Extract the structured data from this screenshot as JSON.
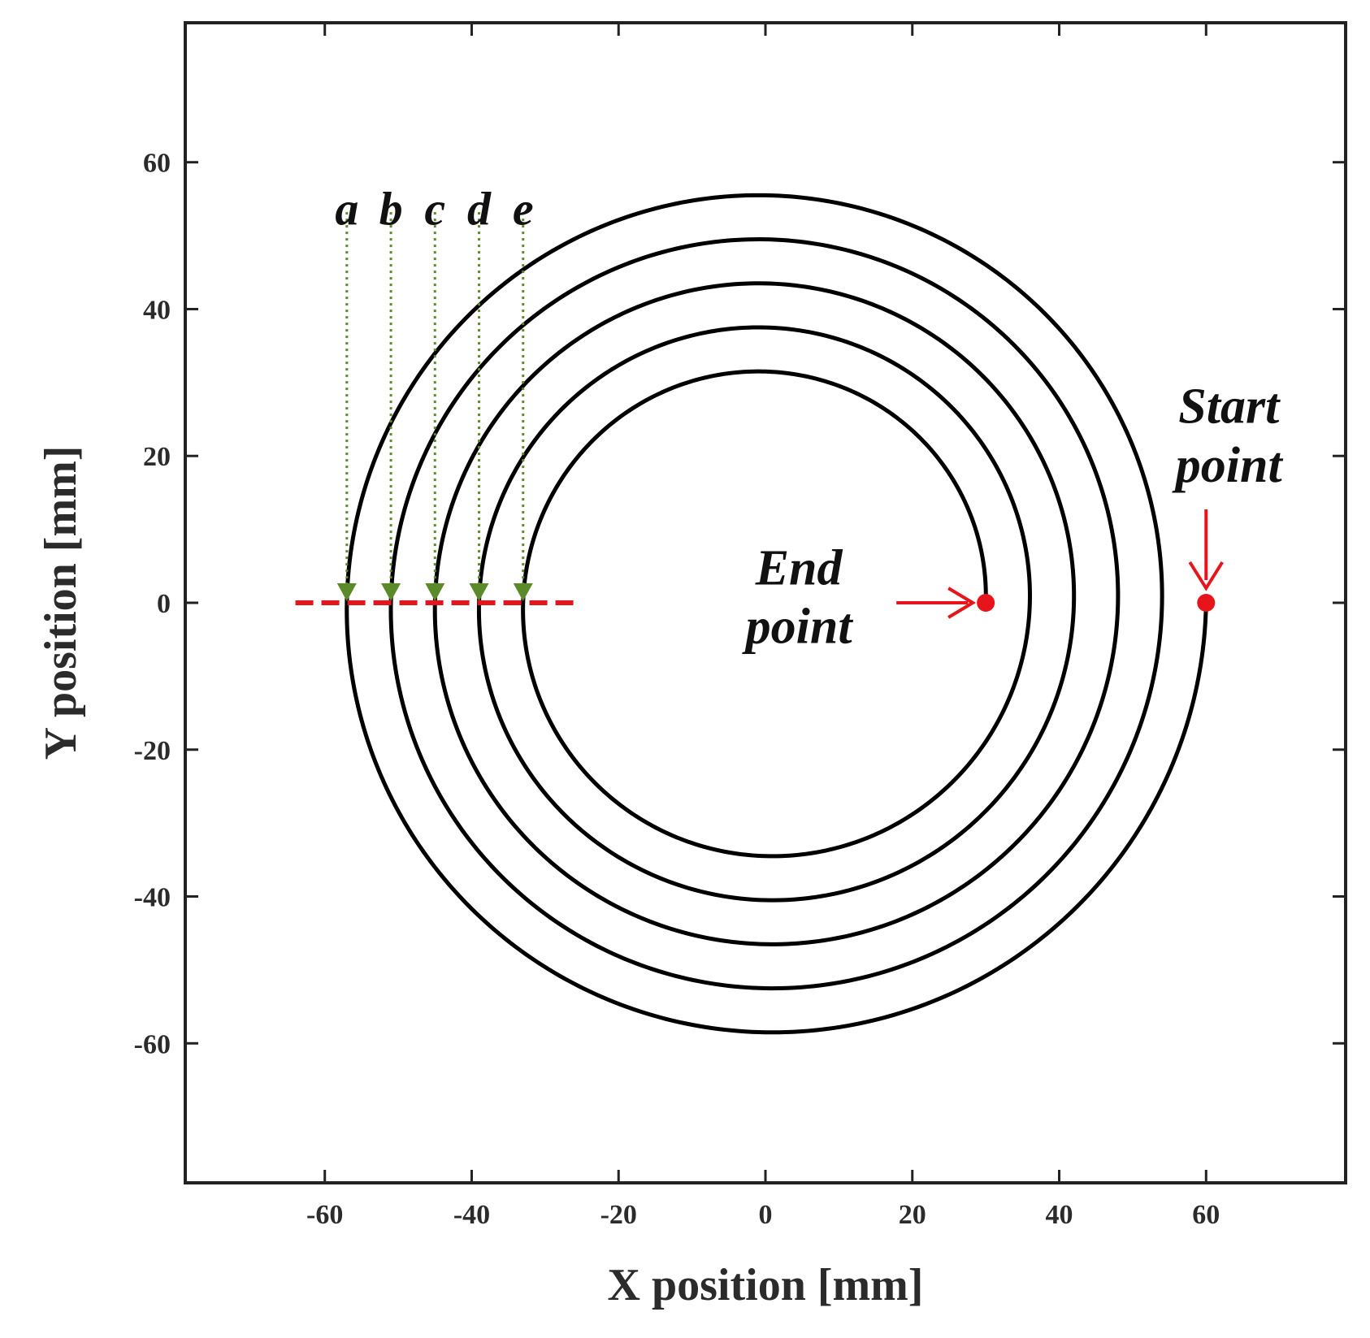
{
  "chart_data": {
    "type": "line",
    "title": "",
    "xlabel": "X position [mm]",
    "ylabel": "Y position [mm]",
    "xlim": [
      -79,
      79
    ],
    "ylim": [
      -79,
      79
    ],
    "xticks": [
      -60,
      -40,
      -20,
      0,
      20,
      40,
      60
    ],
    "yticks": [
      60,
      40,
      20,
      0,
      -20,
      -40,
      -60
    ],
    "grid": false,
    "spiral": {
      "start": [
        60,
        0
      ],
      "end": [
        30,
        0
      ],
      "turns": 5,
      "color": "#000000"
    },
    "crossing_x": [
      -57,
      -51,
      -45,
      -39,
      -33
    ],
    "markers": [
      {
        "id": "start",
        "label_line1": "Start",
        "label_line2": "point",
        "x": 60,
        "y": 0,
        "color": "#e8141b"
      },
      {
        "id": "end",
        "label_line1": "End",
        "label_line2": "point",
        "x": 30,
        "y": 0,
        "color": "#e8141b"
      }
    ],
    "pass_labels": [
      {
        "label": "a",
        "x": -57
      },
      {
        "label": "b",
        "x": -51
      },
      {
        "label": "c",
        "x": -45
      },
      {
        "label": "d",
        "x": -39
      },
      {
        "label": "e",
        "x": -33
      }
    ],
    "section_line": {
      "x_from": -64,
      "x_to": -26,
      "y": 0,
      "color": "#e8141b"
    },
    "guide_color": "#5a8a2a"
  }
}
